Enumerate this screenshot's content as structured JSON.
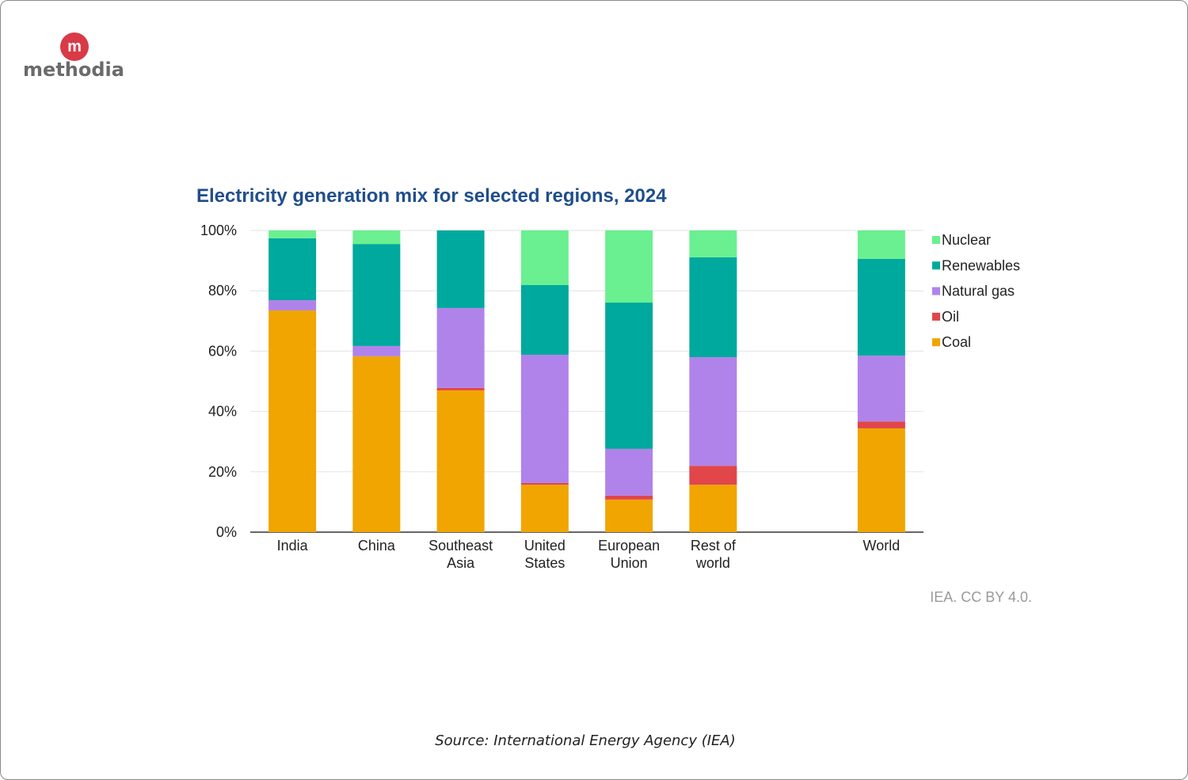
{
  "logo": "methodia",
  "source": "Source: International Energy Agency (IEA)",
  "chart_data": {
    "type": "stacked_bar",
    "title": "Electricity generation mix for selected regions, 2024",
    "credit": "IEA. CC BY 4.0.",
    "categories": [
      "India",
      "China",
      "Southeast Asia",
      "United States",
      "European Union",
      "Rest of world",
      null,
      "World"
    ],
    "series": [
      {
        "name": "Coal",
        "color": "#f0a500",
        "values": [
          73.5,
          58.3,
          47.0,
          15.7,
          10.8,
          15.7,
          null,
          34.4
        ]
      },
      {
        "name": "Oil",
        "color": "#e0464a",
        "values": [
          0,
          0,
          0.8,
          0.6,
          1.3,
          6.3,
          null,
          2.3
        ]
      },
      {
        "name": "Natural gas",
        "color": "#b083ea",
        "values": [
          3.4,
          3.4,
          26.5,
          42.5,
          15.5,
          36.0,
          null,
          21.8
        ]
      },
      {
        "name": "Renewables",
        "color": "#00a99d",
        "values": [
          20.5,
          33.8,
          25.7,
          23.1,
          48.5,
          33.1,
          null,
          32.1
        ]
      },
      {
        "name": "Nuclear",
        "color": "#6af090",
        "values": [
          2.6,
          4.5,
          0,
          18.1,
          23.9,
          8.9,
          null,
          9.4
        ]
      }
    ],
    "ylim": [
      0,
      100
    ],
    "yticks": [
      {
        "value": 0,
        "label": "0%"
      },
      {
        "value": 20,
        "label": "20%"
      },
      {
        "value": 40,
        "label": "40%"
      },
      {
        "value": 60,
        "label": "60%"
      },
      {
        "value": 80,
        "label": "80%"
      },
      {
        "value": 100,
        "label": "100%"
      }
    ],
    "grid": true,
    "legend": "right"
  }
}
